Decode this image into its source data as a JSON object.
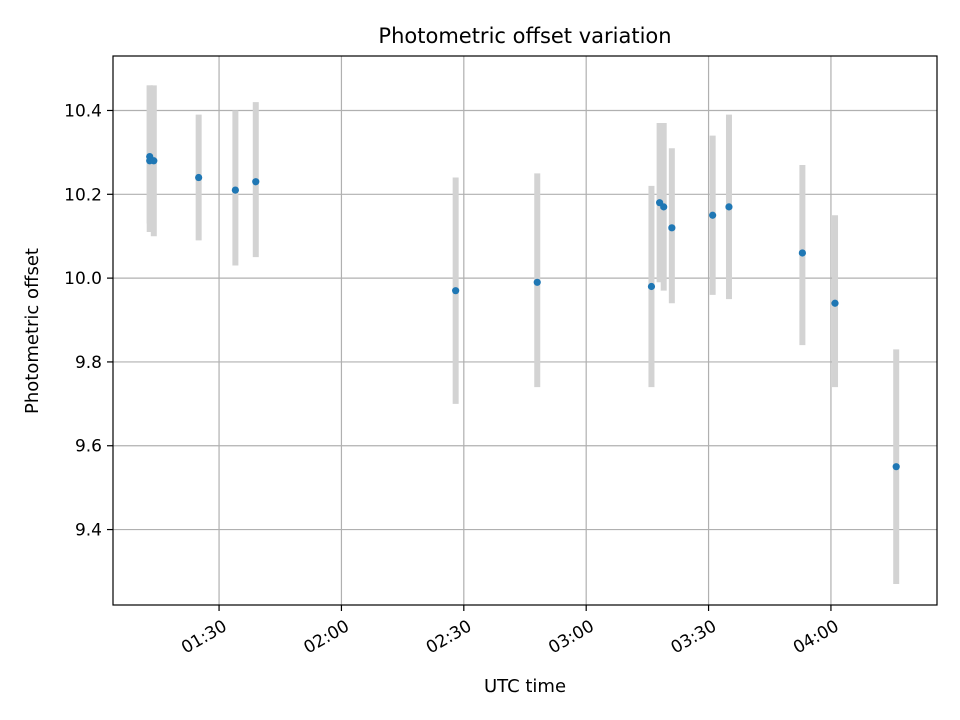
{
  "chart_data": {
    "type": "scatter",
    "title": "Photometric offset variation",
    "xlabel": "UTC time",
    "ylabel": "Photometric offset",
    "grid": true,
    "xlim": [
      "01:04",
      "04:26"
    ],
    "ylim": [
      9.22,
      10.53
    ],
    "xticks": [
      "01:30",
      "02:00",
      "02:30",
      "03:00",
      "03:30",
      "04:00"
    ],
    "yticks": [
      9.4,
      9.6,
      9.8,
      10.0,
      10.2,
      10.4
    ],
    "colors": {
      "marker": "#1f77b4",
      "errorbar": "#d3d3d3"
    },
    "points": [
      {
        "time": "01:13",
        "value": 10.29,
        "low": 10.13,
        "high": 10.46
      },
      {
        "time": "01:13",
        "value": 10.28,
        "low": 10.11,
        "high": 10.46
      },
      {
        "time": "01:14",
        "value": 10.28,
        "low": 10.1,
        "high": 10.46
      },
      {
        "time": "01:25",
        "value": 10.24,
        "low": 10.09,
        "high": 10.39
      },
      {
        "time": "01:34",
        "value": 10.21,
        "low": 10.03,
        "high": 10.4
      },
      {
        "time": "01:39",
        "value": 10.23,
        "low": 10.05,
        "high": 10.42
      },
      {
        "time": "02:28",
        "value": 9.97,
        "low": 9.7,
        "high": 10.24
      },
      {
        "time": "02:48",
        "value": 9.99,
        "low": 9.74,
        "high": 10.25
      },
      {
        "time": "03:16",
        "value": 9.98,
        "low": 9.74,
        "high": 10.22
      },
      {
        "time": "03:18",
        "value": 10.18,
        "low": 9.99,
        "high": 10.37
      },
      {
        "time": "03:19",
        "value": 10.17,
        "low": 9.97,
        "high": 10.37
      },
      {
        "time": "03:21",
        "value": 10.12,
        "low": 9.94,
        "high": 10.31
      },
      {
        "time": "03:31",
        "value": 10.15,
        "low": 9.96,
        "high": 10.34
      },
      {
        "time": "03:35",
        "value": 10.17,
        "low": 9.95,
        "high": 10.39
      },
      {
        "time": "03:53",
        "value": 10.06,
        "low": 9.84,
        "high": 10.27
      },
      {
        "time": "04:01",
        "value": 9.94,
        "low": 9.74,
        "high": 10.15
      },
      {
        "time": "04:16",
        "value": 9.55,
        "low": 9.27,
        "high": 9.83
      }
    ]
  }
}
